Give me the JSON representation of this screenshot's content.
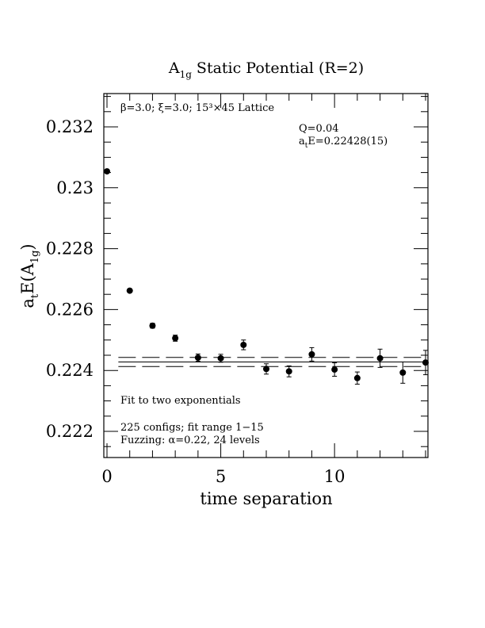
{
  "chart_data": {
    "type": "scatter",
    "title": {
      "main": "A",
      "sub": "1g",
      "rest": " Static Potential (R=2)"
    },
    "xlabel": "time separation",
    "ylabel": {
      "pre": "a",
      "pre_sub": "t",
      "mid": "E(A",
      "mid_sub": "1g",
      "post": ")"
    },
    "xlim": [
      0,
      14
    ],
    "ylim": [
      0.221,
      0.233
    ],
    "x_ticks": [
      {
        "value": 0,
        "label": "0"
      },
      {
        "value": 5,
        "label": "5"
      },
      {
        "value": 10,
        "label": "10"
      }
    ],
    "y_ticks": [
      {
        "value": 0.222,
        "label": "0.222"
      },
      {
        "value": 0.224,
        "label": "0.224"
      },
      {
        "value": 0.226,
        "label": "0.226"
      },
      {
        "value": 0.228,
        "label": "0.228"
      },
      {
        "value": 0.23,
        "label": "0.23"
      },
      {
        "value": 0.232,
        "label": "0.232"
      }
    ],
    "points": [
      {
        "x": 0,
        "y": 0.23054,
        "err": 3e-05
      },
      {
        "x": 1,
        "y": 0.22662,
        "err": 5e-05
      },
      {
        "x": 2,
        "y": 0.22547,
        "err": 8e-05
      },
      {
        "x": 3,
        "y": 0.22506,
        "err": 0.0001
      },
      {
        "x": 4,
        "y": 0.22442,
        "err": 0.00012
      },
      {
        "x": 5,
        "y": 0.2244,
        "err": 0.00013
      },
      {
        "x": 6,
        "y": 0.22484,
        "err": 0.00016
      },
      {
        "x": 7,
        "y": 0.22405,
        "err": 0.00017
      },
      {
        "x": 8,
        "y": 0.22397,
        "err": 0.00018
      },
      {
        "x": 9,
        "y": 0.22453,
        "err": 0.00022
      },
      {
        "x": 10,
        "y": 0.22403,
        "err": 0.00022
      },
      {
        "x": 11,
        "y": 0.22375,
        "err": 0.0002
      },
      {
        "x": 12,
        "y": 0.2244,
        "err": 0.0003
      },
      {
        "x": 13,
        "y": 0.22393,
        "err": 0.00035
      },
      {
        "x": 14,
        "y": 0.22426,
        "err": 0.0004
      }
    ],
    "fit": {
      "x_range": [
        0.5,
        14
      ],
      "central": 0.22428,
      "upper": 0.22443,
      "lower": 0.22413
    },
    "annotations": {
      "lattice": "β=3.0; ξ=3.0; 15³×45 Lattice",
      "q_value": "Q=0.04",
      "energy_pre": "a",
      "energy_sub": "t",
      "energy_post": "E=0.22428(15)",
      "fit_type": "Fit to two exponentials",
      "configs": "225 configs; fit range 1−15",
      "fuzzing": "Fuzzing: α=0.22, 24 levels"
    },
    "grid": false,
    "legend": "none"
  }
}
